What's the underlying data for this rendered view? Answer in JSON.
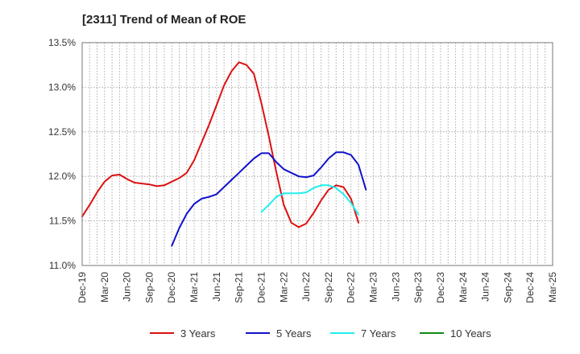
{
  "chart_data": {
    "type": "line",
    "title": "[2311]  Trend of Mean of ROE",
    "xlabel": "",
    "ylabel": "",
    "x_ticks": [
      "Dec-19",
      "Mar-20",
      "Jun-20",
      "Sep-20",
      "Dec-20",
      "Mar-21",
      "Jun-21",
      "Sep-21",
      "Dec-21",
      "Mar-22",
      "Jun-22",
      "Sep-22",
      "Dec-22",
      "Mar-23",
      "Jun-23",
      "Sep-23",
      "Dec-23",
      "Mar-24",
      "Jun-24",
      "Sep-24",
      "Dec-24",
      "Mar-25"
    ],
    "y_ticks": [
      "11.0%",
      "11.5%",
      "12.0%",
      "12.5%",
      "13.0%",
      "13.5%"
    ],
    "y_tick_values": [
      11.0,
      11.5,
      12.0,
      12.5,
      13.0,
      13.5
    ],
    "ylim": [
      11.0,
      13.5
    ],
    "grid": true,
    "legend_position": "bottom",
    "series": [
      {
        "name": "3 Years",
        "color": "#dd1111",
        "points": [
          [
            0,
            11.55
          ],
          [
            1,
            11.68
          ],
          [
            2,
            11.82
          ],
          [
            3,
            11.94
          ],
          [
            4,
            12.01
          ],
          [
            5,
            12.02
          ],
          [
            6,
            11.97
          ],
          [
            7,
            11.93
          ],
          [
            8,
            11.92
          ],
          [
            9,
            11.91
          ],
          [
            10,
            11.89
          ],
          [
            11,
            11.9
          ],
          [
            12,
            11.94
          ],
          [
            13,
            11.98
          ],
          [
            14,
            12.04
          ],
          [
            15,
            12.18
          ],
          [
            16,
            12.38
          ],
          [
            17,
            12.58
          ],
          [
            18,
            12.8
          ],
          [
            19,
            13.02
          ],
          [
            20,
            13.18
          ],
          [
            21,
            13.28
          ],
          [
            22,
            13.25
          ],
          [
            23,
            13.15
          ],
          [
            24,
            12.82
          ],
          [
            25,
            12.45
          ],
          [
            26,
            12.05
          ],
          [
            27,
            11.68
          ],
          [
            28,
            11.48
          ],
          [
            29,
            11.43
          ],
          [
            30,
            11.47
          ],
          [
            31,
            11.59
          ],
          [
            32,
            11.73
          ],
          [
            33,
            11.85
          ],
          [
            34,
            11.9
          ],
          [
            35,
            11.88
          ],
          [
            36,
            11.75
          ],
          [
            37,
            11.48
          ]
        ]
      },
      {
        "name": "5 Years",
        "color": "#1111cc",
        "points": [
          [
            12,
            11.22
          ],
          [
            13,
            11.42
          ],
          [
            14,
            11.58
          ],
          [
            15,
            11.69
          ],
          [
            16,
            11.75
          ],
          [
            17,
            11.77
          ],
          [
            18,
            11.8
          ],
          [
            19,
            11.88
          ],
          [
            20,
            11.96
          ],
          [
            21,
            12.04
          ],
          [
            22,
            12.12
          ],
          [
            23,
            12.2
          ],
          [
            24,
            12.26
          ],
          [
            25,
            12.26
          ],
          [
            26,
            12.16
          ],
          [
            27,
            12.08
          ],
          [
            28,
            12.04
          ],
          [
            29,
            12.0
          ],
          [
            30,
            11.99
          ],
          [
            31,
            12.01
          ],
          [
            32,
            12.1
          ],
          [
            33,
            12.2
          ],
          [
            34,
            12.27
          ],
          [
            35,
            12.27
          ],
          [
            36,
            12.24
          ],
          [
            37,
            12.13
          ],
          [
            38,
            11.85
          ]
        ]
      },
      {
        "name": "7 Years",
        "color": "#22eeee",
        "points": [
          [
            24,
            11.6
          ],
          [
            25,
            11.68
          ],
          [
            26,
            11.77
          ],
          [
            27,
            11.81
          ],
          [
            28,
            11.81
          ],
          [
            29,
            11.81
          ],
          [
            30,
            11.82
          ],
          [
            31,
            11.87
          ],
          [
            32,
            11.9
          ],
          [
            33,
            11.9
          ],
          [
            34,
            11.87
          ],
          [
            35,
            11.8
          ],
          [
            36,
            11.7
          ],
          [
            37,
            11.57
          ]
        ]
      },
      {
        "name": "10 Years",
        "color": "#118811",
        "points": []
      }
    ]
  }
}
